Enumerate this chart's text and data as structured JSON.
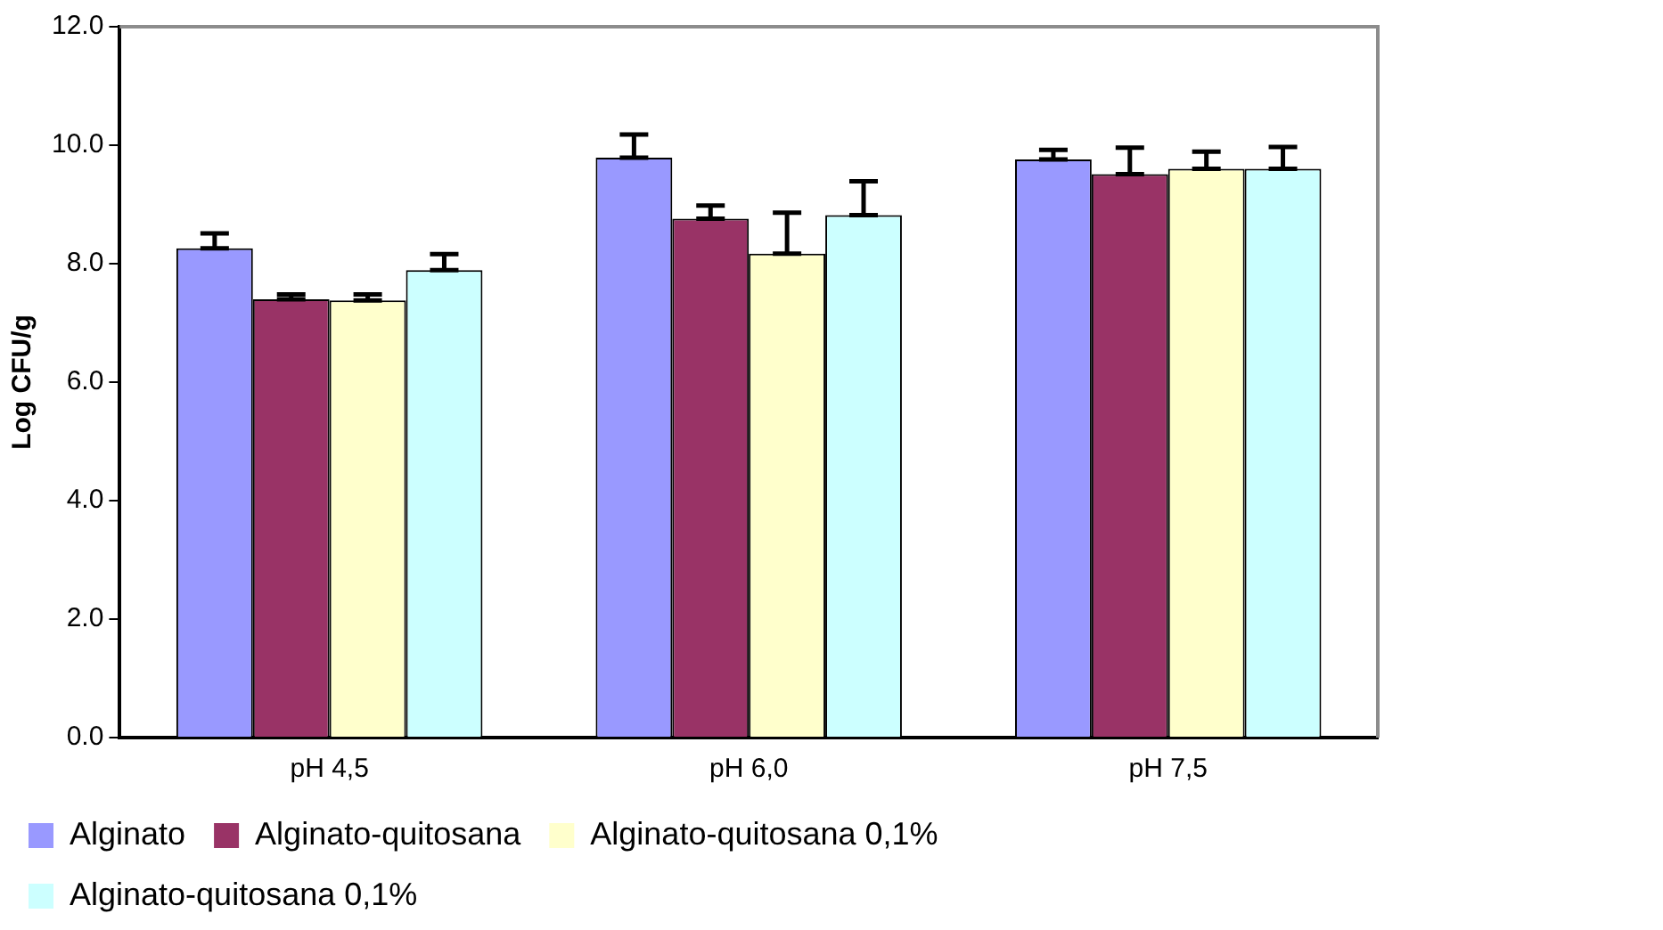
{
  "chart_data": {
    "type": "bar",
    "ylabel": "Log CFU/g",
    "categories": [
      "pH 4,5",
      "pH 6,0",
      "pH 7,5"
    ],
    "ylim": [
      0,
      12
    ],
    "yticks": [
      {
        "value": 0,
        "label": "0.0"
      },
      {
        "value": 2,
        "label": "2.0"
      },
      {
        "value": 4,
        "label": "4.0"
      },
      {
        "value": 6,
        "label": "6.0"
      },
      {
        "value": 8,
        "label": "8.0"
      },
      {
        "value": 10,
        "label": "10.0"
      },
      {
        "value": 12,
        "label": "12.0"
      }
    ],
    "grid": false,
    "legend": "bottom",
    "series": [
      {
        "name": "Alginato",
        "color": "#9999ff",
        "values": [
          8.26,
          9.79,
          9.76
        ],
        "errors": [
          [
            8.26,
            8.51
          ],
          [
            9.79,
            10.18
          ],
          [
            9.76,
            9.92
          ]
        ]
      },
      {
        "name": "Alginato-quitosana",
        "color": "#993366",
        "values": [
          7.4,
          8.76,
          9.51
        ],
        "errors": [
          [
            7.4,
            7.48
          ],
          [
            8.76,
            8.98
          ],
          [
            9.51,
            9.96
          ]
        ]
      },
      {
        "name": "Alginato-quitosana 0,1%",
        "color": "#ffffcc",
        "values": [
          7.38,
          8.17,
          9.6
        ],
        "errors": [
          [
            7.38,
            7.48
          ],
          [
            8.17,
            8.86
          ],
          [
            9.6,
            9.89
          ]
        ]
      },
      {
        "name": "Alginato-quitosana 0,1%",
        "color": "#ccffff",
        "values": [
          7.89,
          8.82,
          9.6
        ],
        "errors": [
          [
            7.89,
            8.16
          ],
          [
            8.82,
            9.39
          ],
          [
            9.6,
            9.97
          ]
        ]
      }
    ]
  }
}
